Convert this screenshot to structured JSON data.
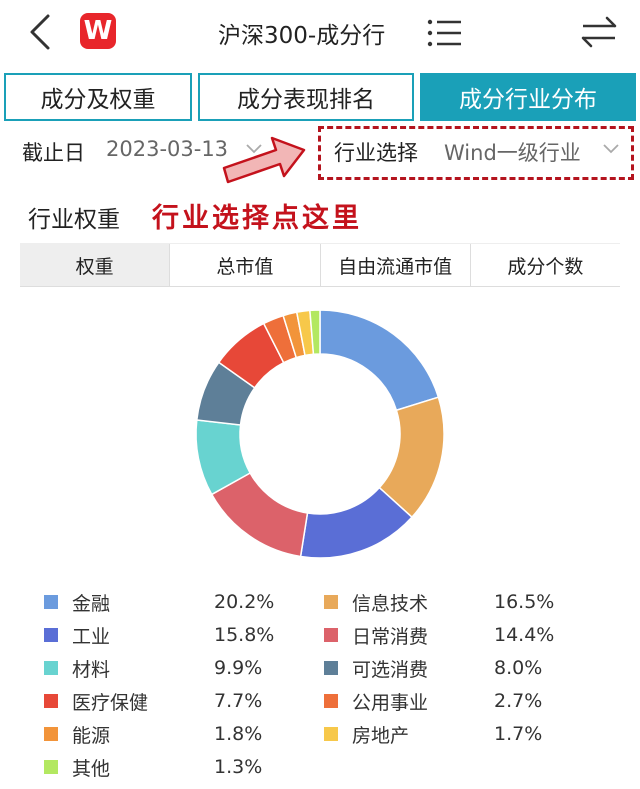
{
  "header": {
    "logo_text": "W",
    "title": "沪深300-成分行",
    "icons": [
      "back-chevron-icon",
      "wind-logo-icon",
      "list-menu-icon",
      "swap-arrows-icon"
    ]
  },
  "tabs": [
    {
      "label": "成分及权重",
      "active": false
    },
    {
      "label": "成分表现排名",
      "active": false
    },
    {
      "label": "成分行业分布",
      "active": true
    }
  ],
  "filters": {
    "date_label": "截止日",
    "date_value": "2023-03-13",
    "industry_label": "行业选择",
    "industry_value": "Wind一级行业"
  },
  "annotation": {
    "text": "行业选择点这里",
    "color": "#c4121c"
  },
  "section": {
    "title": "行业权重"
  },
  "subtabs": [
    {
      "label": "权重",
      "active": true
    },
    {
      "label": "总市值",
      "active": false
    },
    {
      "label": "自由流通市值",
      "active": false
    },
    {
      "label": "成分个数",
      "active": false
    }
  ],
  "colors": {
    "accent": "#1aa0b8",
    "annotation_red": "#c4121c"
  },
  "chart_data": {
    "type": "pie",
    "donut": true,
    "legend_position": "bottom",
    "slices": [
      {
        "name": "金融",
        "value": 20.2,
        "label": "20.2%",
        "color": "#6b9bde"
      },
      {
        "name": "信息技术",
        "value": 16.5,
        "label": "16.5%",
        "color": "#e8a95a"
      },
      {
        "name": "工业",
        "value": 15.8,
        "label": "15.8%",
        "color": "#5a6ed6"
      },
      {
        "name": "日常消费",
        "value": 14.4,
        "label": "14.4%",
        "color": "#dc626a"
      },
      {
        "name": "材料",
        "value": 9.9,
        "label": "9.9%",
        "color": "#68d3d0"
      },
      {
        "name": "可选消费",
        "value": 8.0,
        "label": "8.0%",
        "color": "#5e7f98"
      },
      {
        "name": "医疗保健",
        "value": 7.7,
        "label": "7.7%",
        "color": "#e74838"
      },
      {
        "name": "公用事业",
        "value": 2.7,
        "label": "2.7%",
        "color": "#ee6f3a"
      },
      {
        "name": "能源",
        "value": 1.8,
        "label": "1.8%",
        "color": "#f2943a"
      },
      {
        "name": "房地产",
        "value": 1.7,
        "label": "1.7%",
        "color": "#f7c84a"
      },
      {
        "name": "其他",
        "value": 1.3,
        "label": "1.3%",
        "color": "#b3e861"
      }
    ]
  }
}
